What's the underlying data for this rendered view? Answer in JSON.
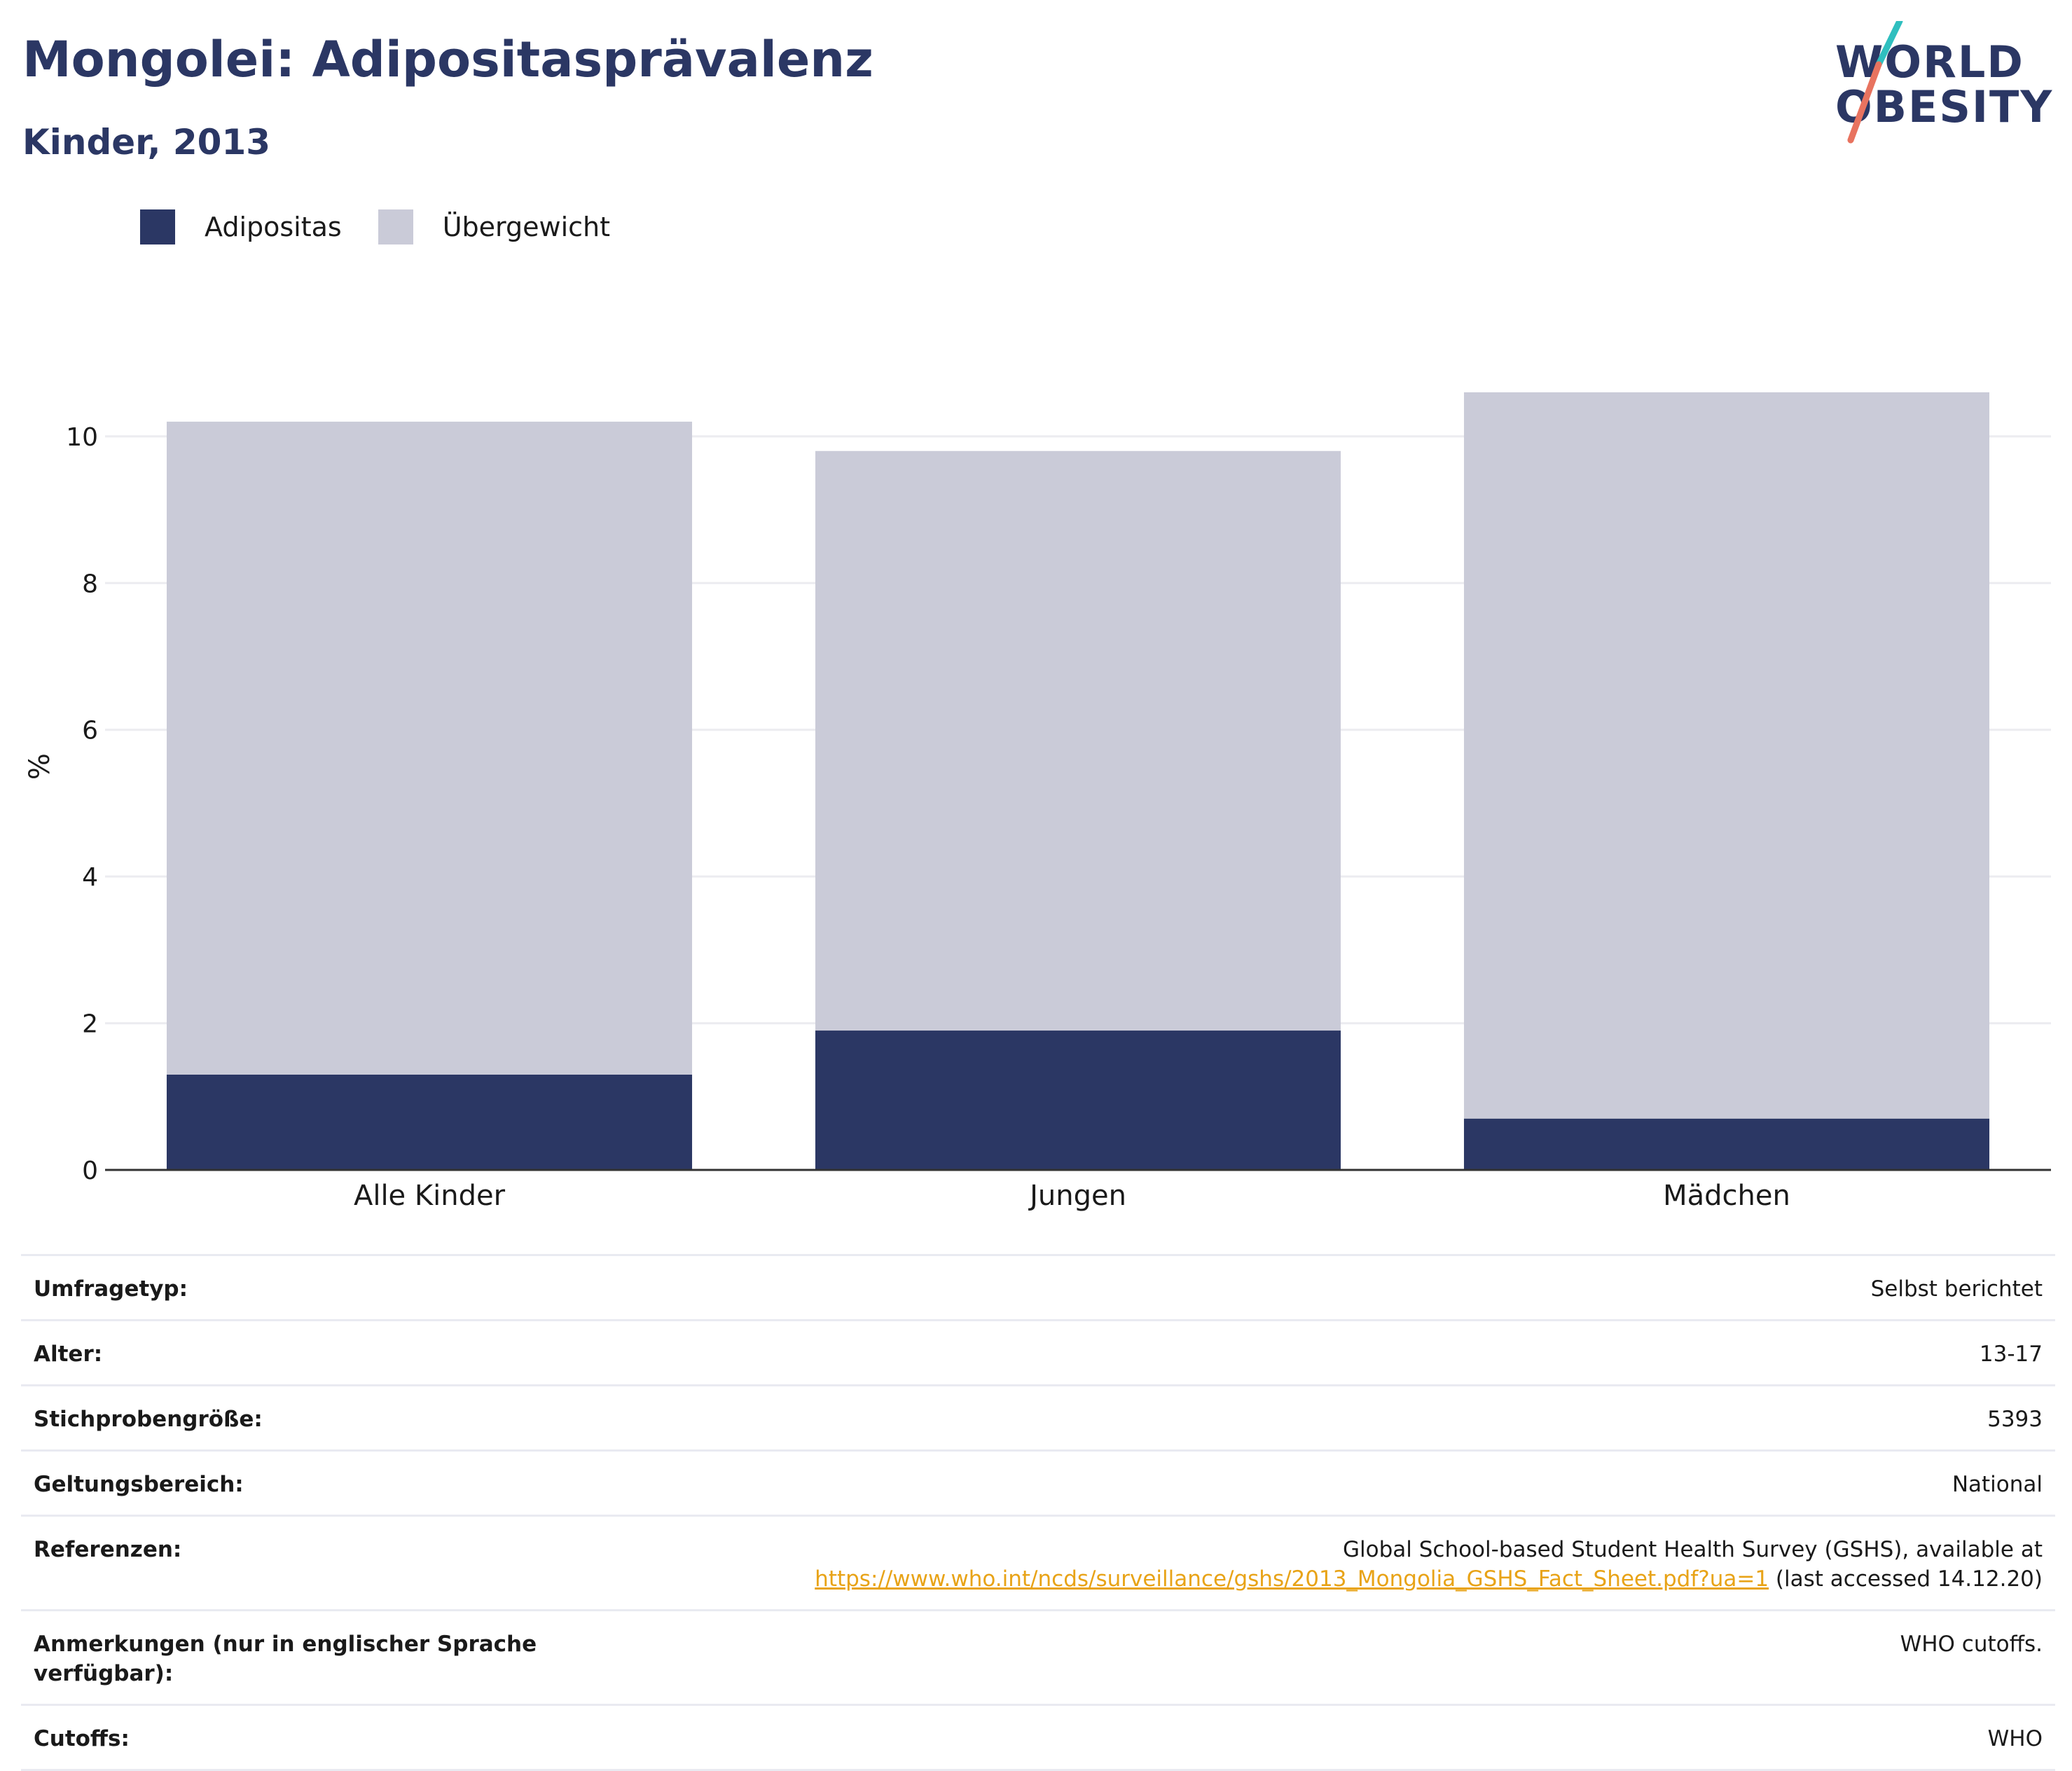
{
  "title": "Mongolei: Adipositasprävalenz",
  "subtitle": "Kinder, 2013",
  "logo": {
    "line1": "WORLD",
    "line2": "OBESITY"
  },
  "colors": {
    "adipositas": "#2b3764",
    "uebergewicht": "#cacbd8",
    "title": "#2b3764",
    "link": "#e8a317",
    "logo_teal": "#2fbfbf",
    "logo_coral": "#e8735f"
  },
  "legend": [
    {
      "label": "Adipositas",
      "color": "#2b3764"
    },
    {
      "label": "Übergewicht",
      "color": "#cacbd8"
    }
  ],
  "chart_data": {
    "type": "bar",
    "stacked": true,
    "categories": [
      "Alle Kinder",
      "Jungen",
      "Mädchen"
    ],
    "series": [
      {
        "name": "Adipositas",
        "values": [
          1.3,
          1.9,
          0.7
        ]
      },
      {
        "name": "Übergewicht",
        "values": [
          8.9,
          7.9,
          9.9
        ]
      }
    ],
    "ylabel": "%",
    "xlabel": "",
    "ylim": [
      0,
      10.6
    ],
    "yticks": [
      0,
      2,
      4,
      6,
      8,
      10
    ],
    "grid": true,
    "legend_position": "top-left"
  },
  "meta": [
    {
      "label": "Umfragetyp:",
      "value": "Selbst berichtet"
    },
    {
      "label": "Alter:",
      "value": "13-17"
    },
    {
      "label": "Stichprobengröße:",
      "value": "5393"
    },
    {
      "label": "Geltungsbereich:",
      "value": "National"
    },
    {
      "label": "Referenzen:",
      "value_line1": "Global School-based Student Health Survey (GSHS), available at",
      "link": "https://www.who.int/ncds/surveillance/gshs/2013_Mongolia_GSHS_Fact_Sheet.pdf?ua=1",
      "value_suffix": " (last accessed 14.12.20)"
    },
    {
      "label": "Anmerkungen (nur in englischer Sprache verfügbar):",
      "value": "WHO cutoffs."
    },
    {
      "label": "Cutoffs:",
      "value": "WHO"
    }
  ]
}
